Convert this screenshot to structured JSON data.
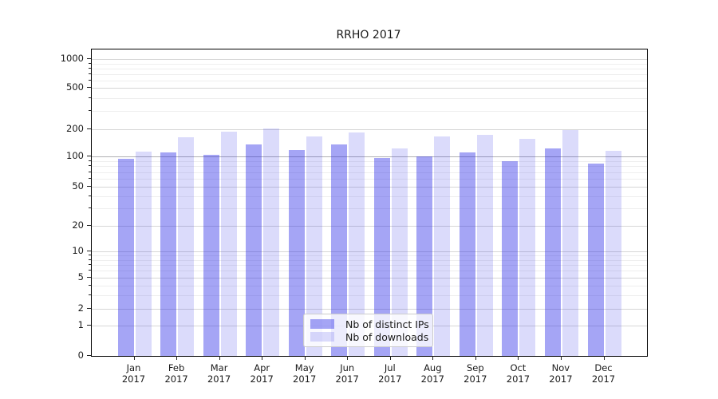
{
  "chart_data": {
    "type": "bar",
    "title": "RRHO 2017",
    "categories": [
      "Jan 2017",
      "Feb 2017",
      "Mar 2017",
      "Apr 2017",
      "May 2017",
      "Jun 2017",
      "Jul 2017",
      "Aug 2017",
      "Sep 2017",
      "Oct 2017",
      "Nov 2017",
      "Dec 2017"
    ],
    "series": [
      {
        "name": "Nb of distinct IPs",
        "fill": "rgba(40,40,230,0.42)",
        "swatch": "#a2a2f0",
        "values": [
          94,
          112,
          104,
          136,
          119,
          136,
          97,
          100,
          110,
          89,
          123,
          85
        ]
      },
      {
        "name": "Nb of downloads",
        "fill": "rgba(40,40,230,0.17)",
        "swatch": "#d9d9f8",
        "values": [
          114,
          162,
          189,
          204,
          165,
          186,
          123,
          166,
          172,
          156,
          197,
          115
        ]
      }
    ],
    "xlabel": "",
    "ylabel": "",
    "yscale": "symlog",
    "y_ticks": [
      0,
      1,
      2,
      5,
      10,
      20,
      50,
      100,
      200,
      500,
      1000
    ],
    "y_minor_ticks": [
      3,
      4,
      6,
      7,
      8,
      9,
      30,
      40,
      60,
      70,
      80,
      90,
      300,
      400,
      600,
      700,
      800,
      900
    ],
    "ylim": [
      0,
      1300
    ],
    "grid": true,
    "emphasized_gridline_value": 100,
    "legend_position": "lower center",
    "colors": {
      "grid_major": "#d6d6d6",
      "grid_minor": "#eeeeee",
      "grid_emphasis": "#b0b0b2",
      "spine": "#000000",
      "text": "#1a1a1a"
    }
  }
}
